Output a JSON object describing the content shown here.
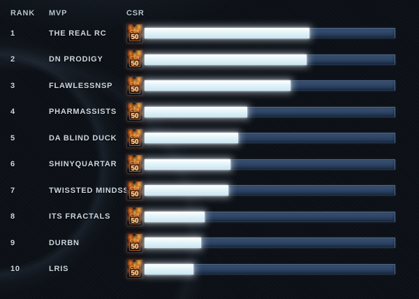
{
  "header": {
    "rank": "RANK",
    "mvp": "MVP",
    "csr": "CSR"
  },
  "badge": {
    "label": "CSR",
    "value": "50"
  },
  "rows": [
    {
      "rank": "1",
      "name": "THE REAL RC",
      "csr_fill_pct": 65.5
    },
    {
      "rank": "2",
      "name": "DN PRODIGY",
      "csr_fill_pct": 64.5
    },
    {
      "rank": "3",
      "name": "FLAWLESSNSP",
      "csr_fill_pct": 58
    },
    {
      "rank": "4",
      "name": "PHARMASSISTS",
      "csr_fill_pct": 40.5
    },
    {
      "rank": "5",
      "name": "DA BLIND DUCK",
      "csr_fill_pct": 37
    },
    {
      "rank": "6",
      "name": "SHINYQUARTAR",
      "csr_fill_pct": 34
    },
    {
      "rank": "7",
      "name": "TWISSTED MINDSS",
      "csr_fill_pct": 33
    },
    {
      "rank": "8",
      "name": "ITS FRACTALS",
      "csr_fill_pct": 23.5
    },
    {
      "rank": "9",
      "name": "DURBN",
      "csr_fill_pct": 22
    },
    {
      "rank": "10",
      "name": "LRIS",
      "csr_fill_pct": 19
    }
  ],
  "colors": {
    "background": "#0c1016",
    "text": "#ccd7de",
    "bar_fill": "#e8f7fb",
    "bar_track": "#2d4464",
    "bar_border": "#4f6b8a",
    "flame_orange": "#ff8c1e"
  }
}
